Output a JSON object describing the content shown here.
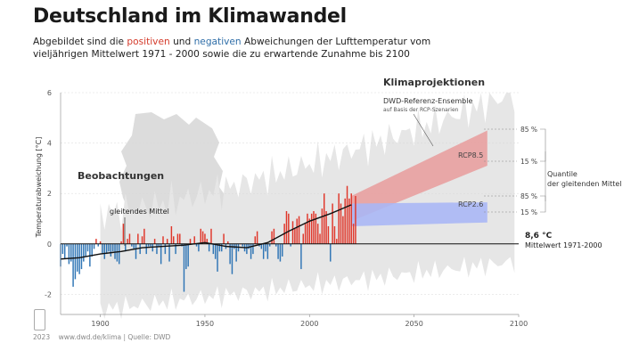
{
  "header": {
    "title": "Deutschland im Klimawandel",
    "sub_1": "Abgebildet sind die ",
    "sub_pos": "positiven",
    "sub_2": " und ",
    "sub_neg": "negativen",
    "sub_3": " Abweichungen der Lufttemperatur vom",
    "sub_line2": "vieljährigen Mittelwert 1971 - 2000 sowie die zu erwartende Zunahme bis 2100"
  },
  "footer": {
    "year": "2023",
    "source": "www.dwd.de/klima | Quelle: DWD"
  },
  "colors": {
    "positive": "#e0362a",
    "negative": "#2f75b5",
    "rcp85": "#e8a0a0",
    "rcp26": "#aab7f5",
    "envelope": "#e6e6e6",
    "map": "#dcdcdc"
  },
  "chart_data": {
    "type": "bar",
    "title": "Deutschland im Klimawandel",
    "ylabel": "Temperaturabweichung [°C]",
    "xlim": [
      1881,
      2100
    ],
    "ylim": [
      -2.8,
      6
    ],
    "x_ticks": [
      1900,
      1950,
      2000,
      2050,
      2100
    ],
    "y_ticks": [
      -2,
      0,
      2,
      4,
      6
    ],
    "baseline_label": "8,6 °C",
    "baseline_sub": "Mittelwert 1971-2000",
    "labels": {
      "beobachtungen": "Beobachtungen",
      "klimaprojektionen": "Klimaprojektionen",
      "gleitendes_mittel": "gleitendes Mittel",
      "ensemble_1": "DWD-Referenz-Ensemble",
      "ensemble_2": "auf Basis der RCP-Szenarien",
      "rcp85": "RCP8.5",
      "rcp26": "RCP2.6",
      "p85": "85 %",
      "p15": "15 %",
      "quantile_1": "Quantile",
      "quantile_2": "der gleitenden Mittel"
    },
    "years": [
      1881,
      1882,
      1883,
      1884,
      1885,
      1886,
      1887,
      1888,
      1889,
      1890,
      1891,
      1892,
      1893,
      1894,
      1895,
      1896,
      1897,
      1898,
      1899,
      1900,
      1901,
      1902,
      1903,
      1904,
      1905,
      1906,
      1907,
      1908,
      1909,
      1910,
      1911,
      1912,
      1913,
      1914,
      1915,
      1916,
      1917,
      1918,
      1919,
      1920,
      1921,
      1922,
      1923,
      1924,
      1925,
      1926,
      1927,
      1928,
      1929,
      1930,
      1931,
      1932,
      1933,
      1934,
      1935,
      1936,
      1937,
      1938,
      1939,
      1940,
      1941,
      1942,
      1943,
      1944,
      1945,
      1946,
      1947,
      1948,
      1949,
      1950,
      1951,
      1952,
      1953,
      1954,
      1955,
      1956,
      1957,
      1958,
      1959,
      1960,
      1961,
      1962,
      1963,
      1964,
      1965,
      1966,
      1967,
      1968,
      1969,
      1970,
      1971,
      1972,
      1973,
      1974,
      1975,
      1976,
      1977,
      1978,
      1979,
      1980,
      1981,
      1982,
      1983,
      1984,
      1985,
      1986,
      1987,
      1988,
      1989,
      1990,
      1991,
      1992,
      1993,
      1994,
      1995,
      1996,
      1997,
      1998,
      1999,
      2000,
      2001,
      2002,
      2003,
      2004,
      2005,
      2006,
      2007,
      2008,
      2009,
      2010,
      2011,
      2012,
      2013,
      2014,
      2015,
      2016,
      2017,
      2018,
      2019,
      2020,
      2021,
      2022
    ],
    "anomalies": [
      -0.9,
      -0.4,
      -0.6,
      -0.1,
      -0.8,
      -0.7,
      -1.7,
      -1.4,
      -1.1,
      -1.2,
      -1.0,
      -0.7,
      -0.5,
      -0.3,
      -0.9,
      -0.5,
      -0.2,
      0.2,
      -0.1,
      0.1,
      -0.4,
      -0.6,
      -0.4,
      -0.3,
      -0.5,
      -0.3,
      -0.6,
      -0.7,
      -0.8,
      0.1,
      0.8,
      -0.3,
      0.2,
      0.4,
      -0.1,
      -0.2,
      -0.6,
      0.4,
      -0.4,
      0.3,
      0.6,
      -0.4,
      -0.1,
      -0.1,
      -0.3,
      0.2,
      -0.4,
      -0.1,
      -0.8,
      0.3,
      -0.4,
      0.2,
      -0.7,
      0.7,
      0.3,
      -0.4,
      0.4,
      0.4,
      -0.1,
      -1.9,
      -1.0,
      -0.9,
      0.2,
      0.0,
      0.3,
      -0.1,
      -0.3,
      0.6,
      0.5,
      0.4,
      0.2,
      -0.3,
      0.6,
      -0.4,
      -0.6,
      -1.1,
      -0.3,
      -0.3,
      0.4,
      -0.2,
      0.1,
      -0.8,
      -1.2,
      -0.2,
      -0.7,
      -0.3,
      0.0,
      -0.1,
      -0.3,
      -0.4,
      -0.2,
      -0.6,
      -0.4,
      0.3,
      0.5,
      -0.1,
      -0.2,
      -0.6,
      -0.3,
      -0.6,
      -0.1,
      0.5,
      0.6,
      -0.1,
      -0.6,
      -0.7,
      -0.5,
      0.8,
      1.3,
      1.2,
      -0.1,
      0.9,
      0.6,
      1.0,
      1.1,
      -1.0,
      0.4,
      0.8,
      1.2,
      1.0,
      1.2,
      1.3,
      1.2,
      0.8,
      0.4,
      1.4,
      2.0,
      1.3,
      0.7,
      -0.7,
      1.6,
      0.7,
      0.2,
      2.0,
      1.6,
      1.1,
      1.8,
      2.3,
      1.8,
      2.0,
      0.8,
      1.9
    ],
    "smoothed_mean": [
      [
        1881,
        -0.6
      ],
      [
        1890,
        -0.55
      ],
      [
        1900,
        -0.4
      ],
      [
        1910,
        -0.3
      ],
      [
        1920,
        -0.15
      ],
      [
        1930,
        -0.1
      ],
      [
        1940,
        -0.05
      ],
      [
        1950,
        0.05
      ],
      [
        1960,
        -0.1
      ],
      [
        1970,
        -0.15
      ],
      [
        1980,
        0.05
      ],
      [
        1990,
        0.5
      ],
      [
        2000,
        0.9
      ],
      [
        2010,
        1.2
      ],
      [
        2020,
        1.55
      ]
    ],
    "rcp85": {
      "years": [
        2020,
        2085
      ],
      "p85": [
        1.9,
        4.5
      ],
      "p15": [
        0.9,
        3.1
      ]
    },
    "rcp26": {
      "years": [
        2020,
        2085
      ],
      "p85": [
        1.6,
        1.65
      ],
      "p15": [
        0.7,
        0.85
      ]
    }
  }
}
